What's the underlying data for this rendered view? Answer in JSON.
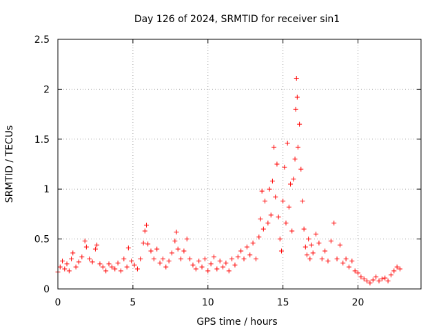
{
  "chart_data": {
    "type": "scatter",
    "title": "Day 126 of 2024, SRMTID for receiver sin1",
    "xlabel": "GPS time / hours",
    "ylabel": "SRMTID / TECUs",
    "xlim": [
      0,
      24.2
    ],
    "ylim": [
      0,
      2.5
    ],
    "grid": true,
    "marker": "plus",
    "color": "#ff0000",
    "x_ticks": [
      0,
      5,
      10,
      15,
      20
    ],
    "x_tick_labels": [
      "0",
      "5",
      "10",
      "15",
      "20"
    ],
    "y_ticks": [
      0,
      0.5,
      1,
      1.5,
      2,
      2.5
    ],
    "y_tick_labels": [
      "0",
      "0.5",
      "1",
      "1.5",
      "2",
      "2.5"
    ],
    "series": [
      {
        "name": "sin1",
        "points": [
          [
            0.0,
            0.17
          ],
          [
            0.15,
            0.22
          ],
          [
            0.3,
            0.28
          ],
          [
            0.45,
            0.2
          ],
          [
            0.6,
            0.25
          ],
          [
            0.75,
            0.18
          ],
          [
            0.9,
            0.3
          ],
          [
            1.0,
            0.36
          ],
          [
            1.2,
            0.22
          ],
          [
            1.4,
            0.27
          ],
          [
            1.6,
            0.32
          ],
          [
            1.8,
            0.48
          ],
          [
            1.9,
            0.42
          ],
          [
            2.1,
            0.3
          ],
          [
            2.3,
            0.27
          ],
          [
            2.5,
            0.4
          ],
          [
            2.6,
            0.44
          ],
          [
            2.8,
            0.25
          ],
          [
            3.0,
            0.22
          ],
          [
            3.2,
            0.18
          ],
          [
            3.4,
            0.25
          ],
          [
            3.6,
            0.22
          ],
          [
            3.8,
            0.2
          ],
          [
            4.0,
            0.26
          ],
          [
            4.2,
            0.18
          ],
          [
            4.4,
            0.3
          ],
          [
            4.6,
            0.22
          ],
          [
            4.7,
            0.41
          ],
          [
            4.9,
            0.28
          ],
          [
            5.1,
            0.24
          ],
          [
            5.3,
            0.2
          ],
          [
            5.5,
            0.3
          ],
          [
            5.7,
            0.46
          ],
          [
            5.8,
            0.58
          ],
          [
            5.9,
            0.64
          ],
          [
            6.0,
            0.45
          ],
          [
            6.2,
            0.38
          ],
          [
            6.4,
            0.3
          ],
          [
            6.6,
            0.4
          ],
          [
            6.8,
            0.26
          ],
          [
            7.0,
            0.3
          ],
          [
            7.2,
            0.22
          ],
          [
            7.4,
            0.28
          ],
          [
            7.6,
            0.36
          ],
          [
            7.8,
            0.48
          ],
          [
            7.9,
            0.57
          ],
          [
            8.0,
            0.4
          ],
          [
            8.2,
            0.3
          ],
          [
            8.4,
            0.38
          ],
          [
            8.6,
            0.5
          ],
          [
            8.8,
            0.3
          ],
          [
            9.0,
            0.24
          ],
          [
            9.2,
            0.2
          ],
          [
            9.4,
            0.28
          ],
          [
            9.6,
            0.22
          ],
          [
            9.8,
            0.3
          ],
          [
            10.0,
            0.18
          ],
          [
            10.2,
            0.25
          ],
          [
            10.4,
            0.32
          ],
          [
            10.6,
            0.2
          ],
          [
            10.8,
            0.28
          ],
          [
            11.0,
            0.22
          ],
          [
            11.2,
            0.26
          ],
          [
            11.4,
            0.18
          ],
          [
            11.6,
            0.3
          ],
          [
            11.8,
            0.24
          ],
          [
            12.0,
            0.32
          ],
          [
            12.2,
            0.38
          ],
          [
            12.4,
            0.3
          ],
          [
            12.6,
            0.42
          ],
          [
            12.8,
            0.34
          ],
          [
            13.0,
            0.46
          ],
          [
            13.2,
            0.3
          ],
          [
            13.4,
            0.52
          ],
          [
            13.5,
            0.7
          ],
          [
            13.6,
            0.98
          ],
          [
            13.7,
            0.6
          ],
          [
            13.8,
            0.88
          ],
          [
            14.0,
            0.66
          ],
          [
            14.1,
            1.0
          ],
          [
            14.2,
            0.74
          ],
          [
            14.3,
            1.08
          ],
          [
            14.4,
            1.42
          ],
          [
            14.5,
            0.92
          ],
          [
            14.6,
            1.25
          ],
          [
            14.7,
            0.72
          ],
          [
            14.8,
            0.5
          ],
          [
            14.9,
            0.38
          ],
          [
            15.0,
            0.88
          ],
          [
            15.1,
            1.22
          ],
          [
            15.2,
            0.66
          ],
          [
            15.3,
            1.46
          ],
          [
            15.4,
            0.82
          ],
          [
            15.5,
            1.05
          ],
          [
            15.6,
            0.58
          ],
          [
            15.7,
            1.1
          ],
          [
            15.8,
            1.3
          ],
          [
            15.85,
            1.8
          ],
          [
            15.9,
            2.11
          ],
          [
            15.95,
            1.92
          ],
          [
            16.0,
            1.42
          ],
          [
            16.1,
            1.65
          ],
          [
            16.2,
            1.2
          ],
          [
            16.3,
            0.88
          ],
          [
            16.4,
            0.6
          ],
          [
            16.5,
            0.42
          ],
          [
            16.6,
            0.34
          ],
          [
            16.7,
            0.5
          ],
          [
            16.8,
            0.3
          ],
          [
            16.9,
            0.44
          ],
          [
            17.0,
            0.36
          ],
          [
            17.2,
            0.55
          ],
          [
            17.4,
            0.46
          ],
          [
            17.6,
            0.3
          ],
          [
            17.8,
            0.38
          ],
          [
            18.0,
            0.28
          ],
          [
            18.2,
            0.48
          ],
          [
            18.4,
            0.66
          ],
          [
            18.6,
            0.3
          ],
          [
            18.8,
            0.44
          ],
          [
            19.0,
            0.26
          ],
          [
            19.2,
            0.3
          ],
          [
            19.4,
            0.22
          ],
          [
            19.6,
            0.28
          ],
          [
            19.8,
            0.18
          ],
          [
            20.0,
            0.16
          ],
          [
            20.2,
            0.12
          ],
          [
            20.4,
            0.1
          ],
          [
            20.6,
            0.08
          ],
          [
            20.8,
            0.06
          ],
          [
            21.0,
            0.09
          ],
          [
            21.2,
            0.12
          ],
          [
            21.4,
            0.08
          ],
          [
            21.6,
            0.1
          ],
          [
            21.8,
            0.11
          ],
          [
            22.0,
            0.08
          ],
          [
            22.2,
            0.14
          ],
          [
            22.4,
            0.18
          ],
          [
            22.6,
            0.22
          ],
          [
            22.8,
            0.2
          ]
        ]
      }
    ]
  }
}
